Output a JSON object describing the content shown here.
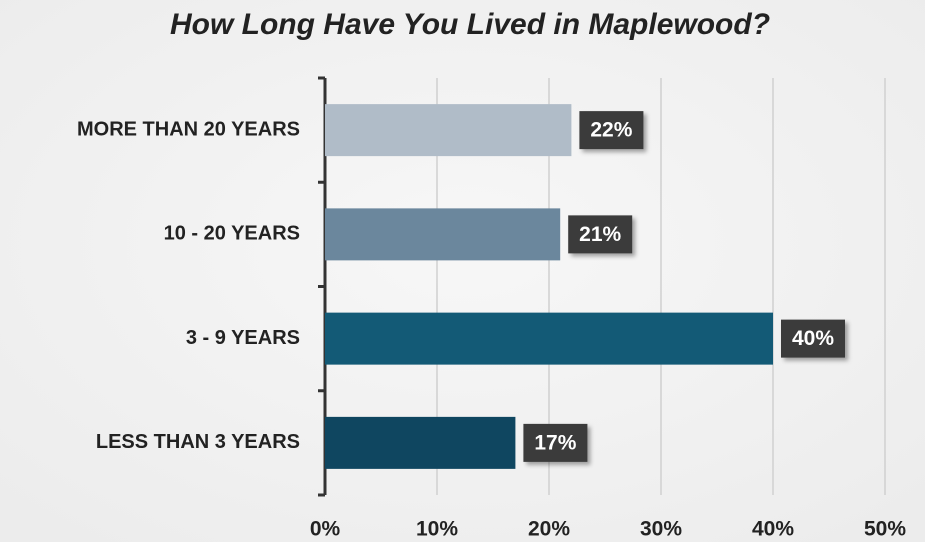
{
  "chart_data": {
    "type": "bar",
    "orientation": "horizontal",
    "title": "How Long Have You Lived in Maplewood?",
    "categories": [
      "MORE THAN 20 YEARS",
      "10 - 20 YEARS",
      "3 - 9 YEARS",
      "LESS THAN 3 YEARS"
    ],
    "values": [
      22,
      21,
      40,
      17
    ],
    "value_labels": [
      "22%",
      "21%",
      "40%",
      "17%"
    ],
    "colors": [
      "#b0bcc8",
      "#6b879d",
      "#135a76",
      "#0f4660"
    ],
    "xlim": [
      0,
      50
    ],
    "xticks": [
      {
        "value": 0,
        "label": "0%"
      },
      {
        "value": 10,
        "label": "10%"
      },
      {
        "value": 20,
        "label": "20%"
      },
      {
        "value": 30,
        "label": "30%"
      },
      {
        "value": 40,
        "label": "40%"
      },
      {
        "value": 50,
        "label": "50%"
      }
    ],
    "grid": true
  }
}
